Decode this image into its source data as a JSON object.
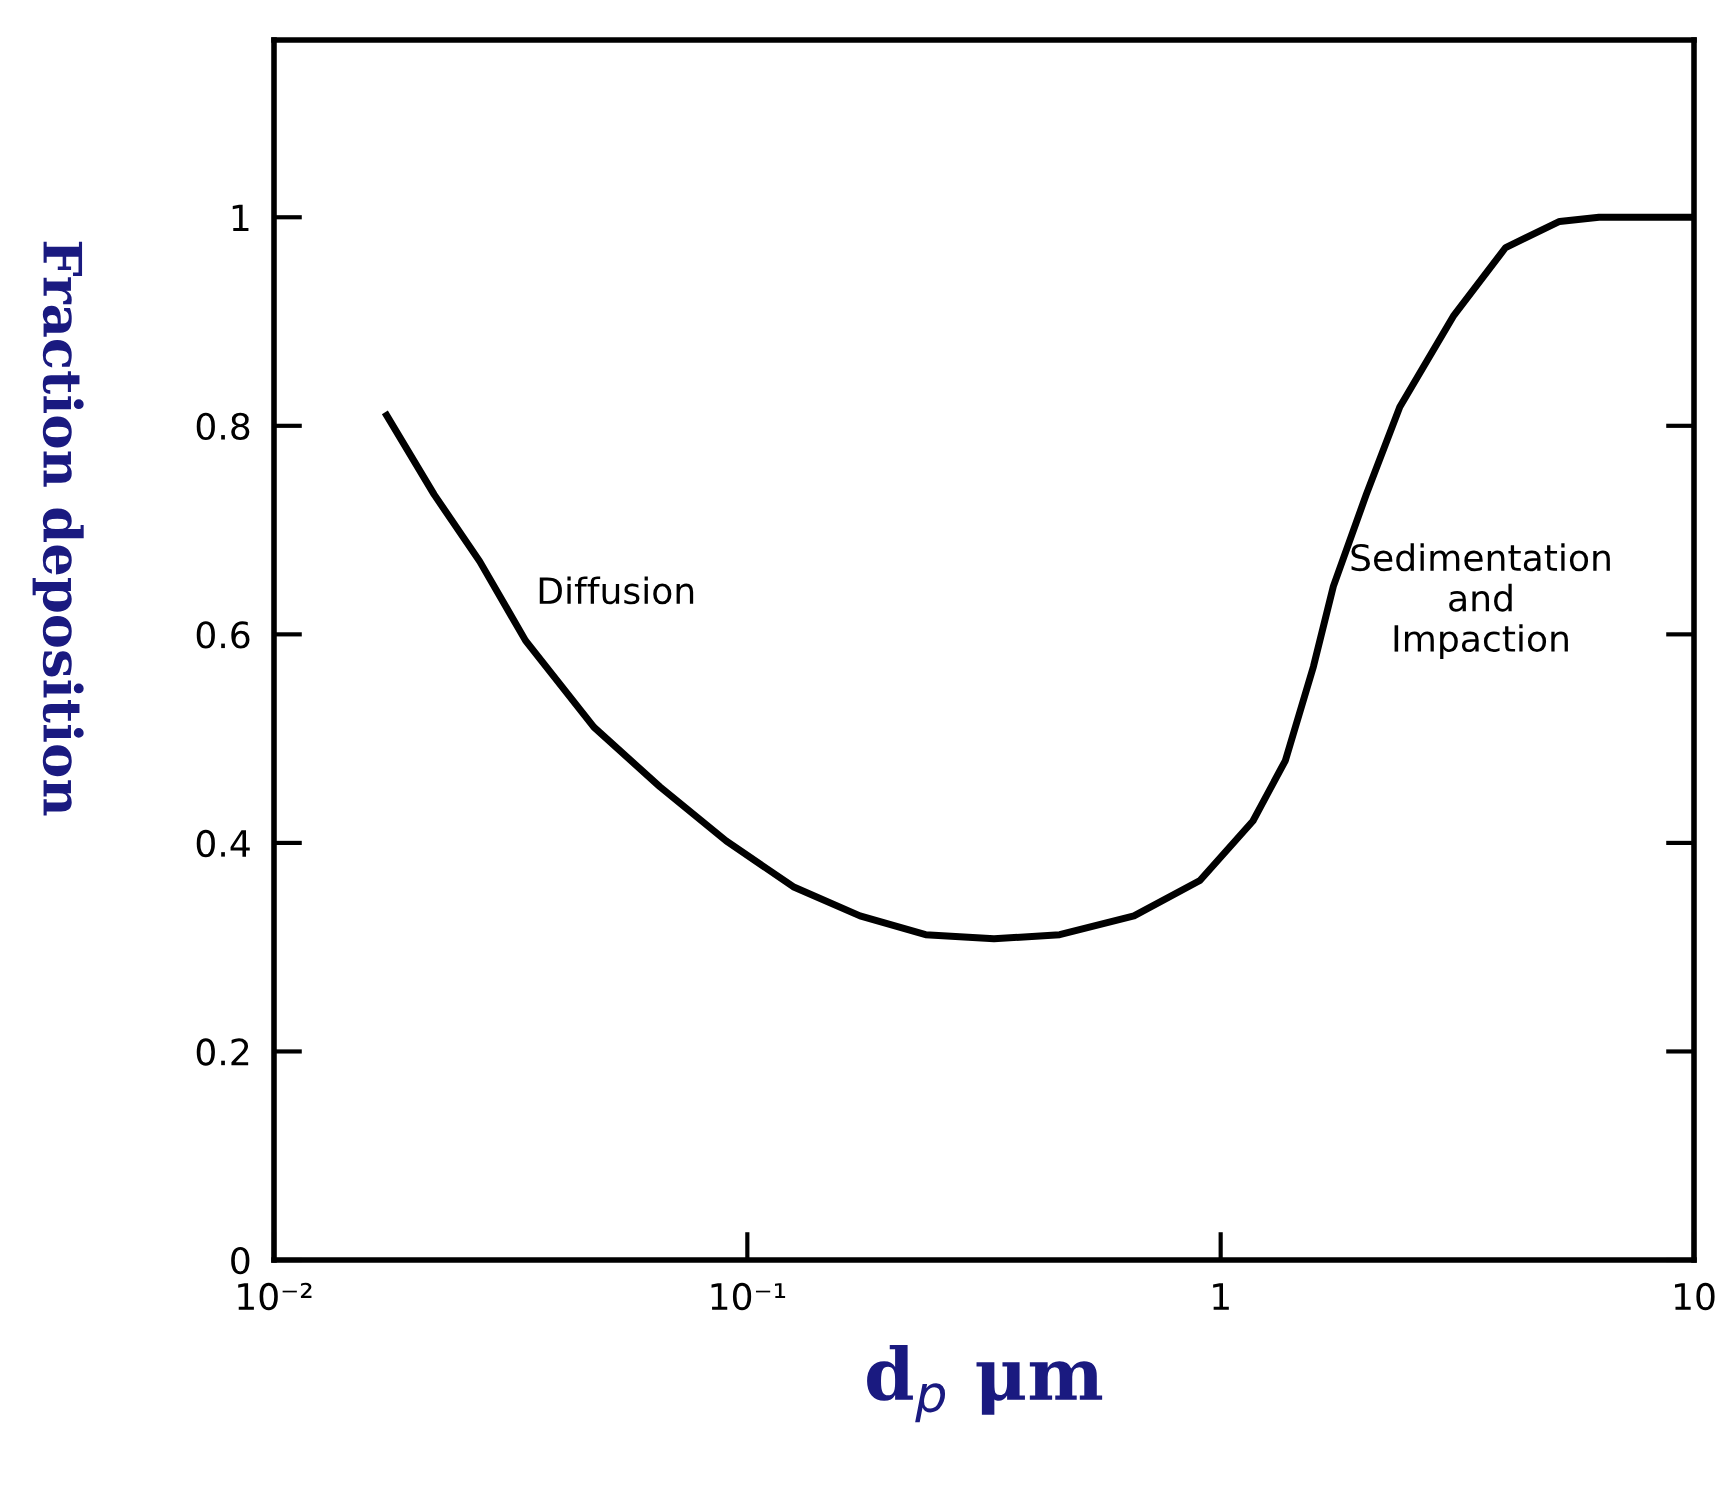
{
  "chart_data": {
    "type": "line",
    "xlabel": "d$_{p}$ μm",
    "ylabel": "Fraction deposition",
    "log": "x",
    "x": [
      0.0173,
      0.0218,
      0.0272,
      0.034,
      0.0474,
      0.0653,
      0.0902,
      0.125,
      0.173,
      0.238,
      0.332,
      0.457,
      0.656,
      0.904,
      1.17,
      1.37,
      1.57,
      1.73,
      2.03,
      2.39,
      3.11,
      4.0,
      5.2,
      6.3,
      10
    ],
    "series": [
      {
        "color": "#000000",
        "values": [
          0.81,
          0.734,
          0.67,
          0.594,
          0.511,
          0.454,
          0.402,
          0.358,
          0.33,
          0.312,
          0.308,
          0.312,
          0.33,
          0.364,
          0.421,
          0.479,
          0.569,
          0.646,
          0.734,
          0.818,
          0.906,
          0.971,
          0.996,
          1.0,
          1.0
        ]
      }
    ],
    "xlim": [
      0.01,
      10
    ],
    "xticks": [
      {
        "value": 0.01,
        "label": "10⁻²"
      },
      {
        "value": 0.1,
        "label": "10⁻¹"
      },
      1,
      10
    ],
    "ylim": [
      0,
      1.17
    ],
    "yticks": [
      0,
      0.2,
      0.4,
      0.6,
      0.8,
      1
    ],
    "annotations": [
      "Diffusion",
      "Sedimentation\nand\nImpaction"
    ],
    "grid": false,
    "legend": false,
    "marker": "none",
    "line_style": "solid"
  }
}
